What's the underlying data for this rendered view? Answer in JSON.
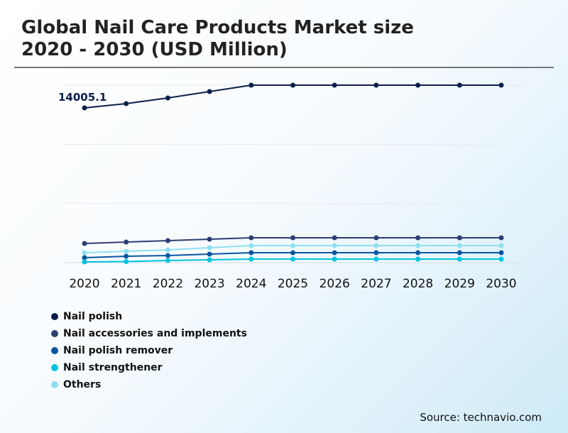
{
  "title_line1": "Global Nail Care Products Market size",
  "title_line2": "2020 - 2030 (USD Million)",
  "source": "Source: technavio.com",
  "chart_data": {
    "type": "line",
    "title": "Global Nail Care Products Market size 2020 - 2030 (USD Million)",
    "categories": [
      "2020",
      "2021",
      "2022",
      "2023",
      "2024",
      "2025",
      "2026",
      "2027",
      "2028",
      "2029",
      "2030"
    ],
    "ylim": [
      0,
      16060
    ],
    "grid": true,
    "legend_position": "bottom-left",
    "annotation": {
      "series": "Nail polish",
      "year": "2020",
      "label": "14005.1"
    },
    "series": [
      {
        "name": "Nail polish",
        "color": "#0b1f4a",
        "values": [
          14005.1,
          14390,
          14904,
          15482,
          16060,
          16060,
          16060,
          16060,
          16060,
          16060,
          16060
        ]
      },
      {
        "name": "Nail accessories and implements",
        "color": "#2c3e73",
        "values": [
          1734,
          1863,
          1991,
          2120,
          2248,
          2248,
          2248,
          2248,
          2248,
          2248,
          2248
        ]
      },
      {
        "name": "Nail polish remover",
        "color": "#0a56a3",
        "values": [
          450,
          578,
          642,
          771,
          899,
          899,
          899,
          899,
          899,
          899,
          899
        ]
      },
      {
        "name": "Nail strengthener",
        "color": "#00c4e0",
        "values": [
          64,
          96,
          193,
          257,
          321,
          321,
          321,
          321,
          321,
          321,
          321
        ]
      },
      {
        "name": "Others",
        "color": "#8fe0f2",
        "values": [
          899,
          1028,
          1156,
          1349,
          1542,
          1542,
          1542,
          1542,
          1542,
          1542,
          1542
        ]
      }
    ]
  }
}
